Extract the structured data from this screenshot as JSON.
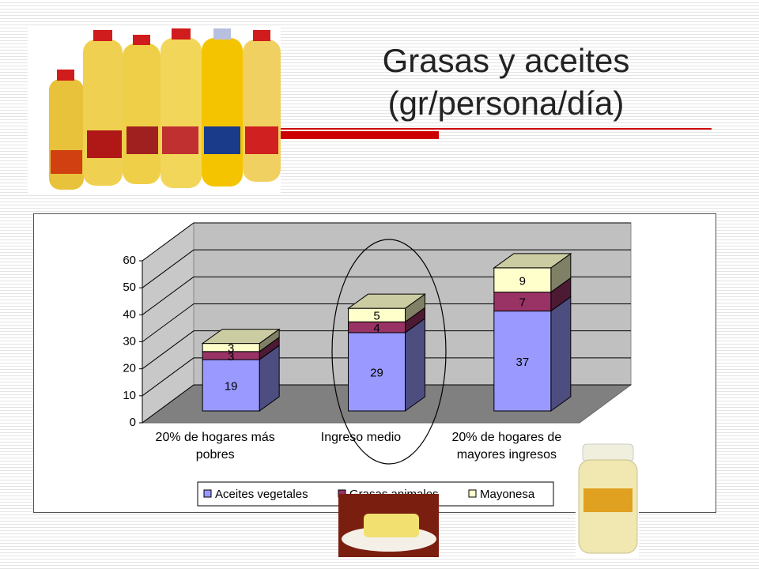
{
  "chart_data": {
    "type": "bar",
    "stacked": true,
    "title": "Grasas y aceites (gr/persona/día)",
    "categories": [
      "20% de hogares más pobres",
      "Ingreso medio",
      "20% de hogares de mayores ingresos"
    ],
    "series": [
      {
        "name": "Aceites vegetales",
        "color": "#9999ff",
        "values": [
          19,
          29,
          37
        ]
      },
      {
        "name": "Grasas animales",
        "color": "#993366",
        "values": [
          3,
          4,
          7
        ]
      },
      {
        "name": "Mayonesa",
        "color": "#ffffcc",
        "values": [
          3,
          5,
          9
        ]
      }
    ],
    "ylim": [
      0,
      60
    ],
    "yticks": [
      0,
      10,
      20,
      30,
      40,
      50,
      60
    ],
    "grid": true,
    "legend": "bottom"
  }
}
